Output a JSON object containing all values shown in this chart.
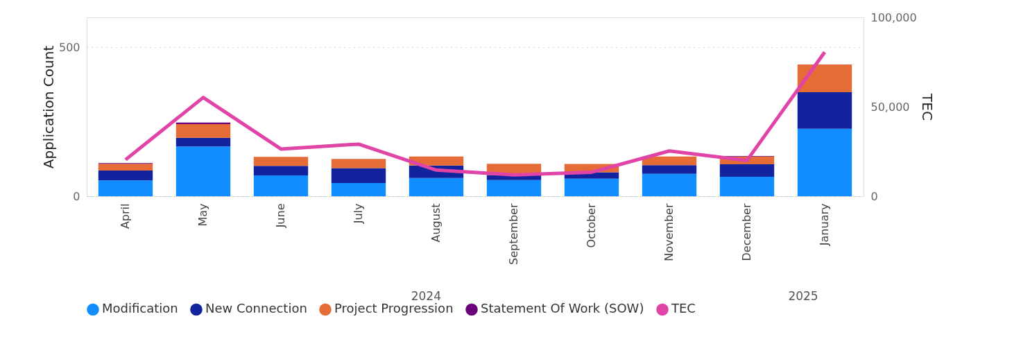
{
  "chart_data": {
    "type": "bar",
    "stacked": true,
    "categories": [
      "April",
      "May",
      "June",
      "July",
      "August",
      "September",
      "October",
      "November",
      "December",
      "January"
    ],
    "ylabel": "Application Count",
    "y2label": "TEC",
    "ylim": [
      0,
      600
    ],
    "yticks": [
      0,
      500
    ],
    "y2lim": [
      0,
      100000
    ],
    "y2ticks": [
      0,
      {
        "value": 50000,
        "label": "50,000"
      },
      {
        "value": 100000,
        "label": "100,000"
      }
    ],
    "grid": "y",
    "legend": "bottom",
    "marker": "none",
    "annotations": [
      "2024",
      "2025"
    ],
    "series": [
      {
        "name": "Modification",
        "color": "#118dff",
        "values": [
          53,
          167,
          70,
          44,
          61,
          54,
          59,
          75,
          65,
          226
        ]
      },
      {
        "name": "New Connection",
        "color": "#12239e",
        "values": [
          33,
          29,
          32,
          50,
          42,
          17,
          21,
          29,
          42,
          123
        ]
      },
      {
        "name": "Project Progression",
        "color": "#e66c37",
        "values": [
          23,
          46,
          30,
          31,
          30,
          38,
          28,
          29,
          26,
          93
        ]
      },
      {
        "name": "Statement Of Work (SOW)",
        "color": "#6b007b",
        "values": [
          2,
          5,
          0,
          0,
          0,
          0,
          0,
          0,
          2,
          0
        ]
      },
      {
        "name": "TEC",
        "type": "line",
        "axis": "y2",
        "color": "#e044a7",
        "line_style": "solid",
        "values": [
          20400,
          55200,
          26400,
          29100,
          14600,
          11900,
          13400,
          25300,
          20000,
          80500
        ]
      }
    ]
  }
}
